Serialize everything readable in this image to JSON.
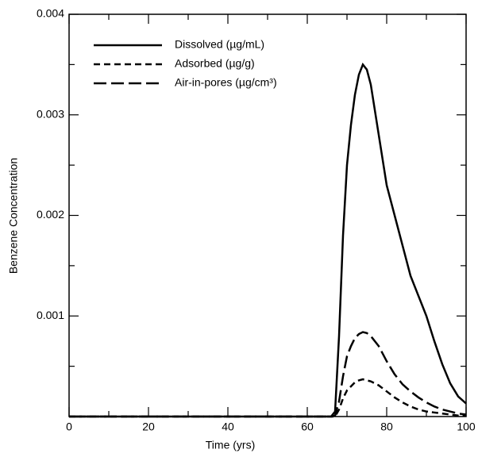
{
  "chart_data": {
    "type": "line",
    "xlabel": "Time (yrs)",
    "ylabel": "Benzene Concentration",
    "x": [
      0,
      66,
      67,
      68,
      69,
      70,
      71,
      72,
      73,
      74,
      75,
      76,
      78,
      80,
      82,
      84,
      86,
      88,
      90,
      92,
      94,
      96,
      98,
      100
    ],
    "series": [
      {
        "name": "Dissolved (µg/mL)",
        "color": "#000000",
        "dash": "none",
        "values": [
          0,
          0,
          5e-05,
          0.0008,
          0.0018,
          0.0025,
          0.0029,
          0.0032,
          0.0034,
          0.0035,
          0.00345,
          0.0033,
          0.0028,
          0.0023,
          0.002,
          0.0017,
          0.0014,
          0.0012,
          0.001,
          0.00075,
          0.00052,
          0.00033,
          0.0002,
          0.00013
        ]
      },
      {
        "name": "Adsorbed (µg/g)",
        "color": "#000000",
        "dash": "8 5",
        "values": [
          0,
          0,
          0,
          7e-05,
          0.00018,
          0.00026,
          0.0003,
          0.00034,
          0.00036,
          0.00037,
          0.00036,
          0.00035,
          0.00031,
          0.00025,
          0.00019,
          0.00014,
          0.0001,
          7e-05,
          5e-05,
          4e-05,
          3e-05,
          2e-05,
          1e-05,
          1e-05
        ]
      },
      {
        "name": "Air-in-pores (µg/cm³)",
        "color": "#000000",
        "dash": "16 6",
        "values": [
          0,
          0,
          1e-05,
          0.00015,
          0.0004,
          0.0006,
          0.0007,
          0.00078,
          0.00082,
          0.00084,
          0.00083,
          0.0008,
          0.0007,
          0.00055,
          0.00042,
          0.00032,
          0.00025,
          0.00019,
          0.00014,
          0.0001,
          7e-05,
          5e-05,
          3e-05,
          2e-05
        ]
      }
    ],
    "xlim": [
      0,
      100
    ],
    "xticks": [
      0,
      20,
      40,
      60,
      80,
      100
    ],
    "xminor": [
      10,
      30,
      50,
      70,
      90
    ],
    "ylim": [
      0,
      0.004
    ],
    "yticks": [
      0.001,
      0.002,
      0.003,
      0.004
    ],
    "yminor": [
      0.0005,
      0.0015,
      0.0025,
      0.0035
    ],
    "legend": "upper left"
  }
}
